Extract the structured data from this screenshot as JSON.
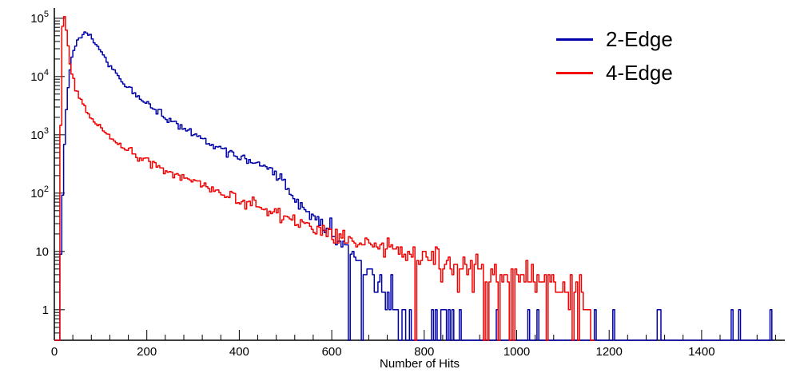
{
  "figure": {
    "background": "#ffffff",
    "axis_color": "#000000"
  },
  "chart_data": {
    "type": "line",
    "title": "",
    "xlabel": "Number of Hits",
    "ylabel": "",
    "y_scale": "log10",
    "grid": false,
    "x_range": [
      0,
      1580
    ],
    "y_range": [
      0.3,
      150000
    ],
    "x_ticks": [
      0,
      200,
      400,
      600,
      800,
      1000,
      1200,
      1400
    ],
    "x_minor_tick_step": 40,
    "y_ticks_exponents": [
      0,
      1,
      2,
      3,
      4,
      5
    ],
    "y_tick_labels": [
      "1",
      "10",
      "10^2",
      "10^3",
      "10^4",
      "10^5"
    ],
    "legend_position": "top-right",
    "legend": [
      {
        "label": "2-Edge",
        "color": "#0000a8"
      },
      {
        "label": "4-Edge",
        "color": "#f30000"
      }
    ],
    "series": [
      {
        "name": "2-Edge",
        "color": "#0000a8",
        "bin_width": 4,
        "seed": 20240,
        "envelope": [
          [
            0,
            0.001
          ],
          [
            8,
            0.001
          ],
          [
            12,
            2
          ],
          [
            16,
            30
          ],
          [
            20,
            300
          ],
          [
            24,
            1500
          ],
          [
            28,
            5000
          ],
          [
            34,
            14000
          ],
          [
            40,
            26000
          ],
          [
            48,
            40000
          ],
          [
            56,
            50000
          ],
          [
            64,
            55000
          ],
          [
            72,
            52000
          ],
          [
            80,
            46000
          ],
          [
            90,
            36000
          ],
          [
            100,
            27000
          ],
          [
            112,
            19500
          ],
          [
            125,
            14000
          ],
          [
            140,
            9800
          ],
          [
            158,
            6800
          ],
          [
            176,
            5000
          ],
          [
            195,
            3700
          ],
          [
            215,
            2800
          ],
          [
            235,
            2150
          ],
          [
            255,
            1700
          ],
          [
            275,
            1350
          ],
          [
            295,
            1080
          ],
          [
            315,
            880
          ],
          [
            335,
            730
          ],
          [
            355,
            600
          ],
          [
            375,
            500
          ],
          [
            395,
            430
          ],
          [
            415,
            370
          ],
          [
            432,
            330
          ],
          [
            448,
            300
          ],
          [
            462,
            265
          ],
          [
            476,
            225
          ],
          [
            490,
            175
          ],
          [
            504,
            125
          ],
          [
            518,
            88
          ],
          [
            532,
            62
          ],
          [
            546,
            50
          ],
          [
            562,
            38
          ],
          [
            580,
            28
          ],
          [
            600,
            20
          ],
          [
            620,
            14
          ],
          [
            640,
            10
          ],
          [
            660,
            7
          ],
          [
            680,
            5
          ],
          [
            698,
            3.2
          ],
          [
            714,
            2.0
          ],
          [
            728,
            1.3
          ],
          [
            742,
            0.85
          ],
          [
            756,
            0.55
          ],
          [
            775,
            0.38
          ],
          [
            800,
            0.27
          ],
          [
            840,
            0.2
          ],
          [
            900,
            0.15
          ],
          [
            1000,
            0.12
          ],
          [
            1100,
            0.11
          ],
          [
            1200,
            0.1
          ],
          [
            1300,
            0.09
          ],
          [
            1400,
            0.08
          ],
          [
            1500,
            0.07
          ],
          [
            1556,
            0.06
          ]
        ]
      },
      {
        "name": "4-Edge",
        "color": "#f30000",
        "bin_width": 4,
        "seed": 77,
        "envelope": [
          [
            0,
            0.001
          ],
          [
            9,
            0.001
          ],
          [
            11,
            5
          ],
          [
            13,
            300
          ],
          [
            15,
            8000
          ],
          [
            17,
            50000
          ],
          [
            19,
            95000
          ],
          [
            21,
            110000
          ],
          [
            23,
            98000
          ],
          [
            25,
            72000
          ],
          [
            28,
            42000
          ],
          [
            31,
            26000
          ],
          [
            35,
            15500
          ],
          [
            39,
            10500
          ],
          [
            44,
            7200
          ],
          [
            50,
            5200
          ],
          [
            57,
            3900
          ],
          [
            65,
            3000
          ],
          [
            74,
            2350
          ],
          [
            84,
            1850
          ],
          [
            95,
            1480
          ],
          [
            107,
            1180
          ],
          [
            120,
            950
          ],
          [
            135,
            760
          ],
          [
            152,
            610
          ],
          [
            170,
            490
          ],
          [
            190,
            395
          ],
          [
            210,
            325
          ],
          [
            232,
            270
          ],
          [
            255,
            222
          ],
          [
            278,
            185
          ],
          [
            300,
            158
          ],
          [
            325,
            132
          ],
          [
            350,
            111
          ],
          [
            377,
            92
          ],
          [
            405,
            76
          ],
          [
            435,
            62
          ],
          [
            465,
            51
          ],
          [
            495,
            42
          ],
          [
            525,
            35
          ],
          [
            555,
            26
          ],
          [
            585,
            22
          ],
          [
            615,
            18
          ],
          [
            645,
            15.5
          ],
          [
            675,
            13.5
          ],
          [
            705,
            11.5
          ],
          [
            740,
            9.8
          ],
          [
            775,
            8.4
          ],
          [
            810,
            7.2
          ],
          [
            845,
            6.3
          ],
          [
            880,
            5.6
          ],
          [
            915,
            5.0
          ],
          [
            950,
            4.5
          ],
          [
            990,
            4.0
          ],
          [
            1030,
            3.6
          ],
          [
            1070,
            3.2
          ],
          [
            1105,
            2.9
          ],
          [
            1135,
            2.5
          ],
          [
            1152,
            1.8
          ],
          [
            1162,
            0.6
          ],
          [
            1168,
            0.001
          ]
        ]
      }
    ]
  }
}
